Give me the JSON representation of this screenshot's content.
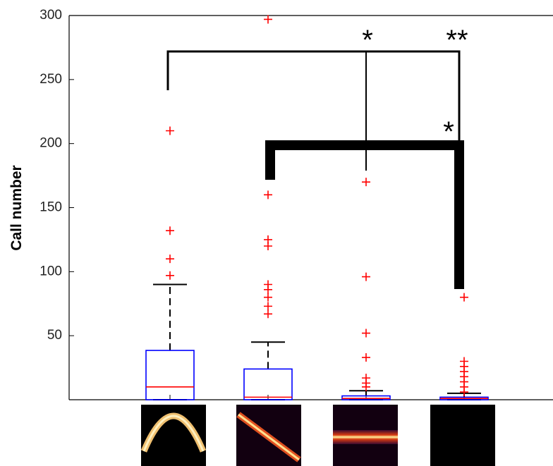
{
  "chart_data": {
    "type": "box",
    "ylabel": "Call number",
    "categories": [
      null,
      null,
      null,
      null
    ],
    "ylim": [
      0,
      300
    ],
    "yticks": [
      50,
      100,
      150,
      200,
      250,
      300
    ],
    "box_color": "#0000ff",
    "median_color": "#ff0000",
    "outlier_color": "#ff0000",
    "whisker_color": "#000000",
    "boxes": [
      {
        "whisker_low": 0,
        "q1": 0,
        "median": 10,
        "q3": 38.5,
        "whisker_high": 90,
        "outliers": [
          97,
          110,
          132,
          210
        ]
      },
      {
        "whisker_low": 0,
        "q1": 0,
        "median": 2,
        "q3": 24,
        "whisker_high": 45,
        "outliers": [
          67,
          73,
          80,
          86,
          90,
          120,
          125,
          160,
          297
        ]
      },
      {
        "whisker_low": 0,
        "q1": 0,
        "median": 1,
        "q3": 3,
        "whisker_high": 7,
        "outliers": [
          10,
          13,
          17,
          33,
          52,
          96,
          170
        ]
      },
      {
        "whisker_low": 0,
        "q1": 0,
        "median": 1,
        "q3": 2,
        "whisker_high": 5,
        "outliers": [
          6,
          10,
          14,
          18,
          22,
          26,
          30,
          80
        ]
      }
    ],
    "annotations": [
      "*",
      "**",
      "*"
    ]
  }
}
